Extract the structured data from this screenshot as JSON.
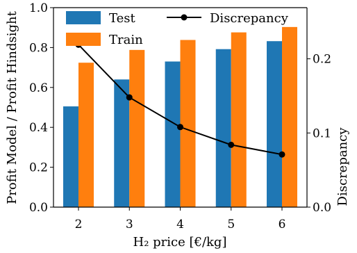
{
  "chart_data": {
    "type": "bar",
    "categories": [
      "2",
      "3",
      "4",
      "5",
      "6"
    ],
    "series": [
      {
        "name": "Test",
        "values": [
          0.505,
          0.64,
          0.73,
          0.792,
          0.832
        ],
        "color": "#1f77b4",
        "axis": "left",
        "kind": "bar"
      },
      {
        "name": "Train",
        "values": [
          0.724,
          0.788,
          0.838,
          0.876,
          0.903
        ],
        "color": "#ff7f0e",
        "axis": "left",
        "kind": "bar"
      },
      {
        "name": "Discrepancy",
        "values": [
          0.219,
          0.148,
          0.108,
          0.084,
          0.071
        ],
        "color": "#000000",
        "axis": "right",
        "kind": "line",
        "marker": "circle"
      }
    ],
    "xlabel": "H₂ price [€/kg]",
    "ylabel": "Profit Model / Profit Hindsight",
    "ylabel_right": "Discrepancy",
    "ylim": [
      0,
      1.0
    ],
    "ylim_right": [
      0,
      0.269
    ],
    "yticks": [
      "0.0",
      "0.2",
      "0.4",
      "0.6",
      "0.8",
      "1.0"
    ],
    "yticks_right": [
      "0.0",
      "0.1",
      "0.2"
    ],
    "legend_position": "top",
    "grid": false
  }
}
